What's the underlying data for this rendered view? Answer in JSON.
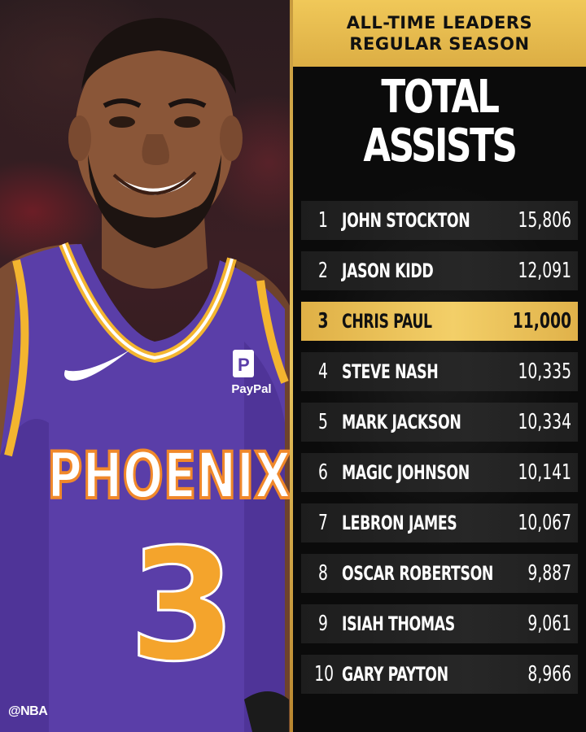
{
  "header": {
    "line1": "ALL-TIME LEADERS",
    "line2": "REGULAR SEASON"
  },
  "title": {
    "line1": "TOTAL",
    "line2": "ASSISTS"
  },
  "leaders": [
    {
      "rank": "1",
      "name": "JOHN STOCKTON",
      "value": "15,806",
      "highlight": false
    },
    {
      "rank": "2",
      "name": "JASON KIDD",
      "value": "12,091",
      "highlight": false
    },
    {
      "rank": "3",
      "name": "CHRIS PAUL",
      "value": "11,000",
      "highlight": true
    },
    {
      "rank": "4",
      "name": "STEVE NASH",
      "value": "10,335",
      "highlight": false
    },
    {
      "rank": "5",
      "name": "MARK JACKSON",
      "value": "10,334",
      "highlight": false
    },
    {
      "rank": "6",
      "name": "MAGIC JOHNSON",
      "value": "10,141",
      "highlight": false
    },
    {
      "rank": "7",
      "name": "LEBRON JAMES",
      "value": "10,067",
      "highlight": false
    },
    {
      "rank": "8",
      "name": "OSCAR ROBERTSON",
      "value": "9,887",
      "highlight": false
    },
    {
      "rank": "9",
      "name": "ISIAH THOMAS",
      "value": "9,061",
      "highlight": false
    },
    {
      "rank": "10",
      "name": "GARY PAYTON",
      "value": "8,966",
      "highlight": false
    }
  ],
  "jersey": {
    "team": "PHOENIX",
    "number": "3",
    "sponsor": "PayPal"
  },
  "watermark": "@NBA",
  "colors": {
    "gold": "#e6bd55",
    "jersey_purple": "#5b3fa6",
    "jersey_orange": "#f0882a",
    "panel_bg": "#0b0b0b"
  }
}
